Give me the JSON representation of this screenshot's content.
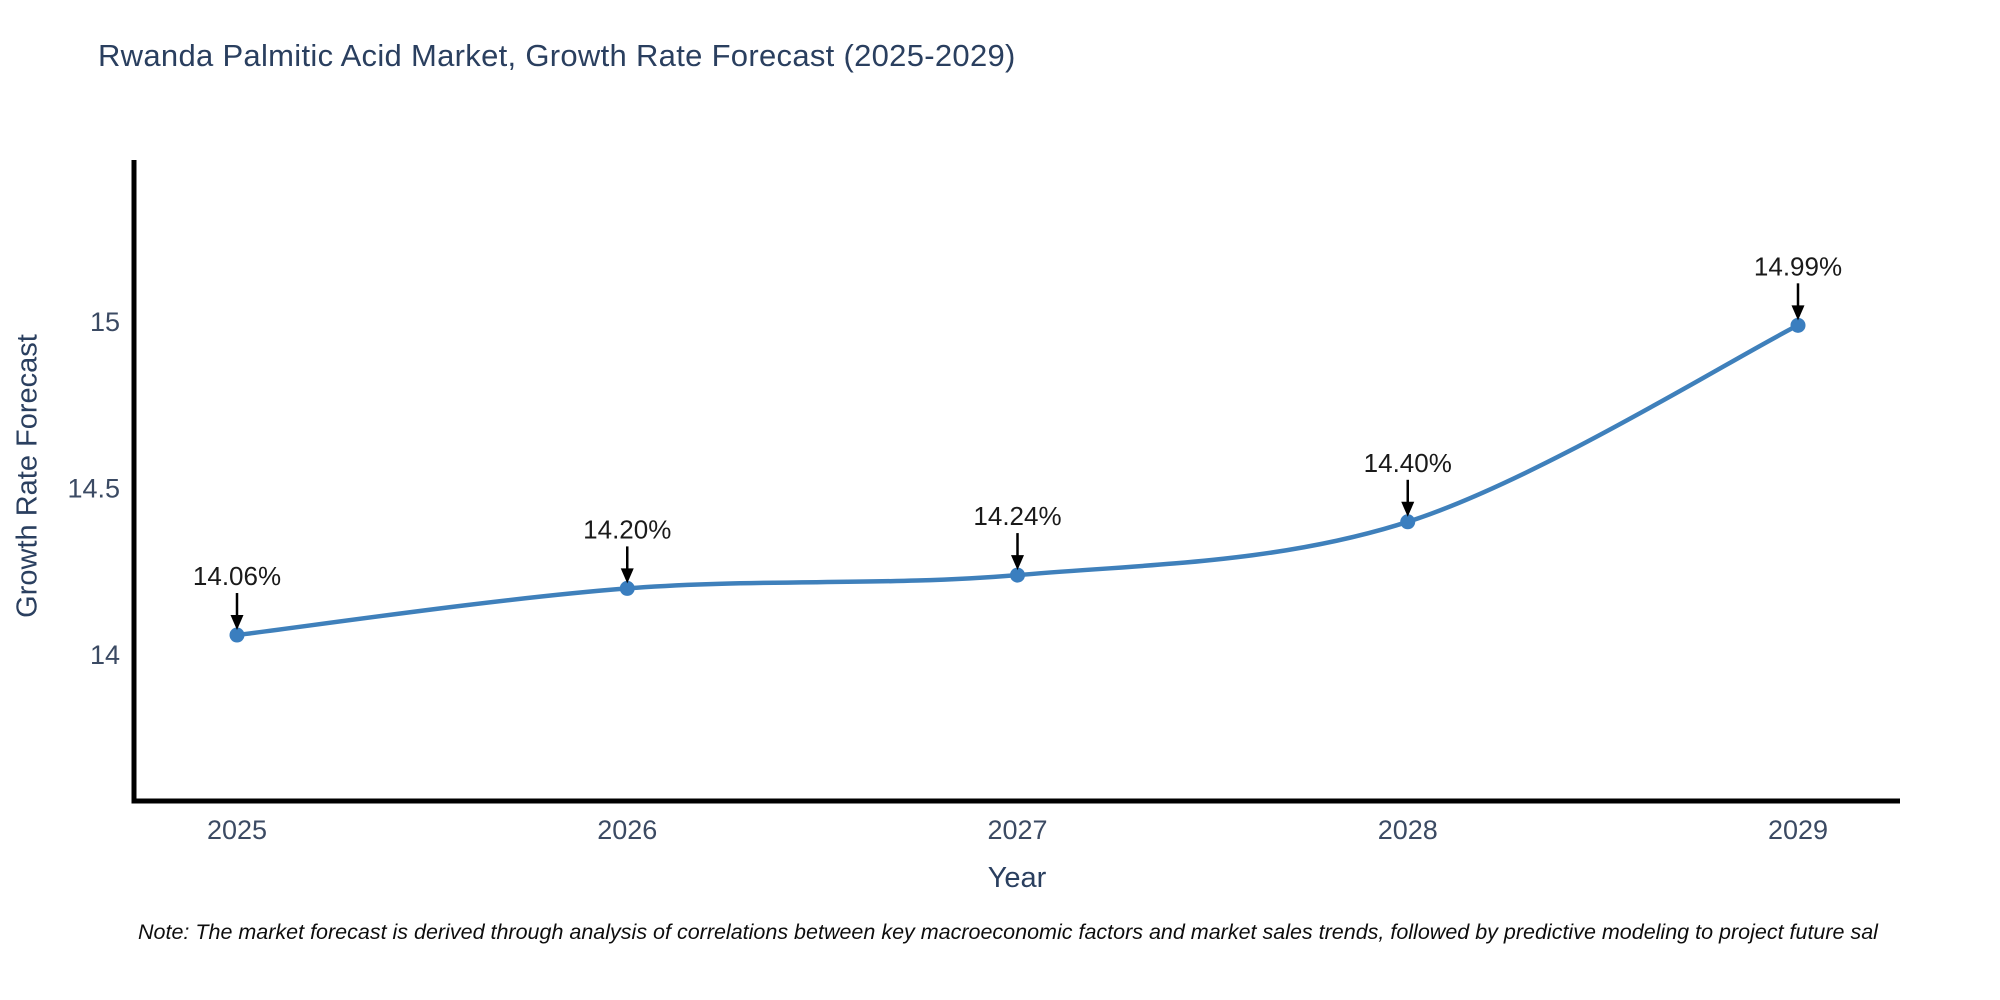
{
  "page": {
    "background": "#ffffff"
  },
  "chart": {
    "note": "Note: The market forecast is derived through analysis of correlations between key macroeconomic factors and market sales trends, followed by predictive modeling to project future sal",
    "colors": {
      "line": "#3f80bb",
      "marker": "#3a7ebf",
      "axis": "#000000",
      "tick_text": "#3b4a63",
      "annotation_text": "#1a1a1a",
      "annotation_arrow": "#000000"
    }
  },
  "chart_data": {
    "type": "line",
    "title": "Rwanda Palmitic Acid Market, Growth Rate Forecast (2025-2029)",
    "xlabel": "Year",
    "ylabel": "Growth Rate Forecast",
    "x": [
      2025,
      2026,
      2027,
      2028,
      2029
    ],
    "series": [
      {
        "name": "Growth Rate Forecast",
        "values": [
          14.06,
          14.2,
          14.24,
          14.4,
          14.99
        ]
      }
    ],
    "point_labels": [
      "14.06%",
      "14.20%",
      "14.24%",
      "14.40%",
      "14.99%"
    ],
    "xtick_labels": [
      "2025",
      "2026",
      "2027",
      "2028",
      "2029"
    ],
    "yticks": [
      14,
      14.5,
      15
    ],
    "ytick_labels": [
      "14",
      "14.5",
      "15"
    ],
    "ylim": [
      13.56,
      15.5
    ],
    "xlim": [
      2024.74,
      2029.26
    ],
    "grid": false,
    "legend": "none",
    "line_shape": "spline"
  }
}
